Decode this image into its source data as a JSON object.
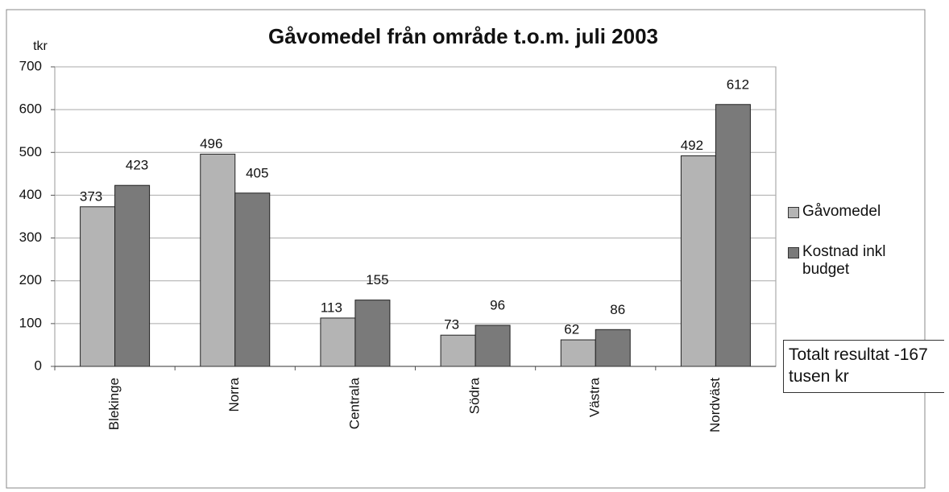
{
  "chart_data": {
    "type": "bar",
    "title": "Gåvomedel från område t.o.m. juli 2003",
    "y_axis_label": "tkr",
    "categories": [
      "Blekinge",
      "Norra",
      "Centrala",
      "Södra",
      "Västra",
      "Nordväst"
    ],
    "series": [
      {
        "name": "Gåvomedel",
        "color": "#b4b4b4",
        "values": [
          373,
          496,
          113,
          73,
          62,
          492
        ]
      },
      {
        "name": "Kostnad inkl budget",
        "color": "#7a7a7a",
        "values": [
          423,
          405,
          155,
          96,
          86,
          612
        ]
      }
    ],
    "annotation": "Totalt resultat -167 tusen kr",
    "ylim": [
      0,
      700
    ],
    "yticks": [
      0,
      100,
      200,
      300,
      400,
      500,
      600,
      700
    ],
    "grid": true,
    "legend": "right"
  }
}
